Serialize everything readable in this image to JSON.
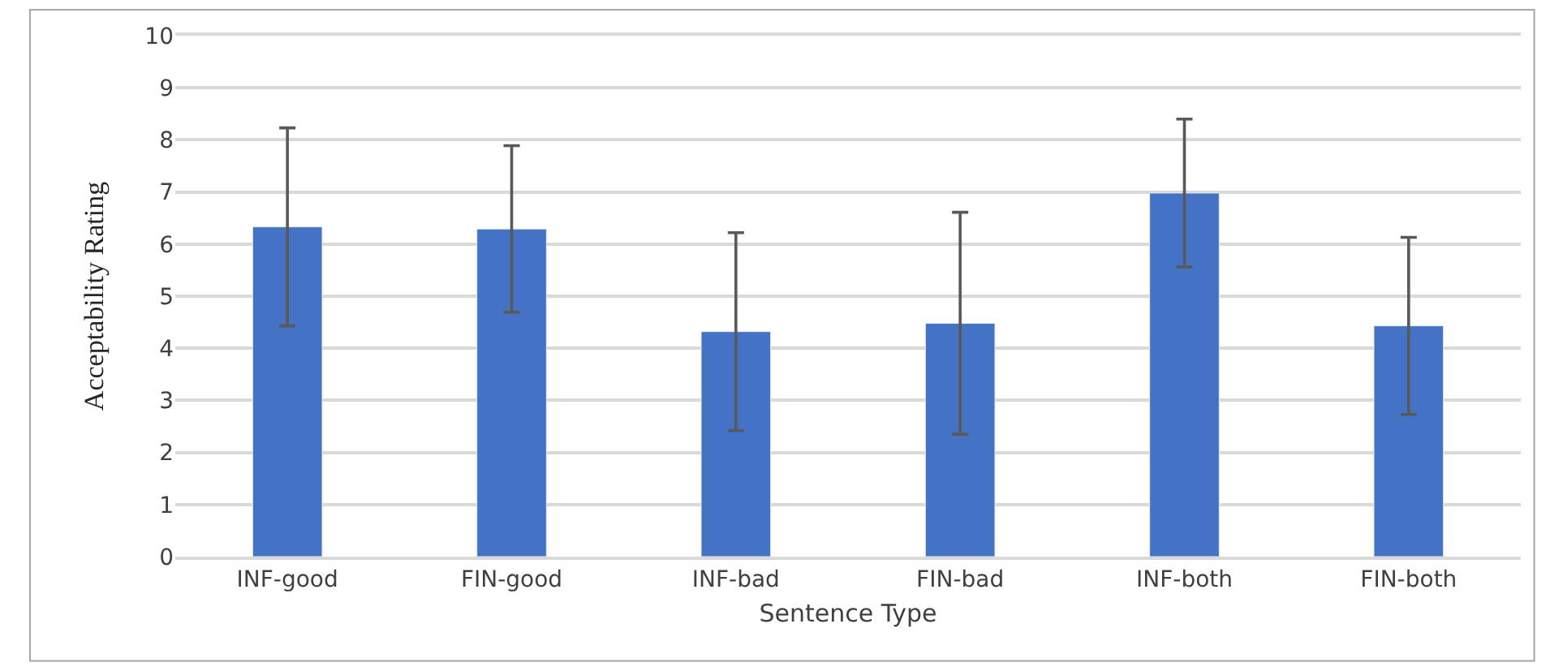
{
  "chart_data": {
    "type": "bar",
    "xlabel": "Sentence Type",
    "ylabel": "Acceptability Rating",
    "categories": [
      "INF-good",
      "FIN-good",
      "INF-bad",
      "FIN-bad",
      "INF-both",
      "FIN-both"
    ],
    "series": [
      {
        "color": "#4472c4",
        "values": [
          6.33,
          6.29,
          4.32,
          4.48,
          6.98,
          4.43
        ],
        "errors": [
          1.9,
          1.6,
          1.9,
          2.13,
          1.42,
          1.7
        ]
      }
    ],
    "ylim": [
      0,
      10
    ],
    "yticks": [
      0,
      1,
      2,
      3,
      4,
      5,
      6,
      7,
      8,
      9,
      10
    ],
    "grid": "y"
  }
}
